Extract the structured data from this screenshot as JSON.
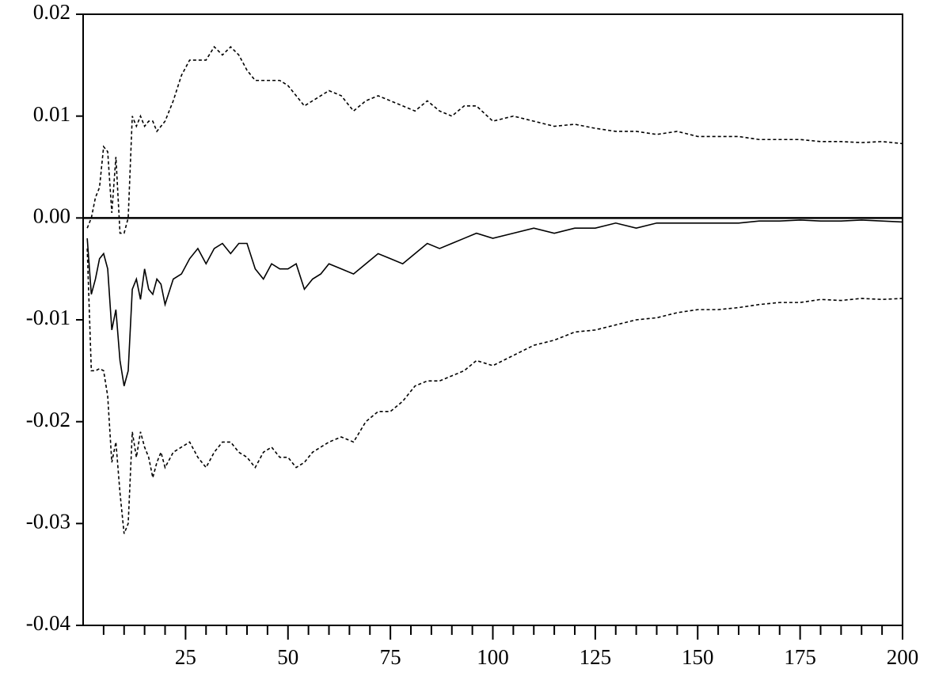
{
  "chart_data": {
    "type": "line",
    "x": [
      1,
      2,
      3,
      4,
      5,
      6,
      7,
      8,
      9,
      10,
      11,
      12,
      13,
      14,
      15,
      16,
      17,
      18,
      19,
      20,
      22,
      24,
      26,
      28,
      30,
      32,
      34,
      36,
      38,
      40,
      42,
      44,
      46,
      48,
      50,
      52,
      54,
      56,
      58,
      60,
      63,
      66,
      69,
      72,
      75,
      78,
      81,
      84,
      87,
      90,
      93,
      96,
      100,
      105,
      110,
      115,
      120,
      125,
      130,
      135,
      140,
      145,
      150,
      155,
      160,
      165,
      170,
      175,
      180,
      185,
      190,
      195,
      200
    ],
    "series": [
      {
        "color": "#000000",
        "dash": false,
        "values": [
          -0.002,
          -0.0075,
          -0.006,
          -0.004,
          -0.0035,
          -0.005,
          -0.011,
          -0.009,
          -0.014,
          -0.0165,
          -0.015,
          -0.007,
          -0.006,
          -0.008,
          -0.005,
          -0.007,
          -0.0075,
          -0.006,
          -0.0065,
          -0.0085,
          -0.006,
          -0.0055,
          -0.004,
          -0.003,
          -0.0045,
          -0.003,
          -0.0025,
          -0.0035,
          -0.0025,
          -0.0025,
          -0.005,
          -0.006,
          -0.0045,
          -0.005,
          -0.005,
          -0.0045,
          -0.007,
          -0.006,
          -0.0055,
          -0.0045,
          -0.005,
          -0.0055,
          -0.0045,
          -0.0035,
          -0.004,
          -0.0045,
          -0.0035,
          -0.0025,
          -0.003,
          -0.0025,
          -0.002,
          -0.0015,
          -0.002,
          -0.0015,
          -0.001,
          -0.0015,
          -0.001,
          -0.001,
          -0.0005,
          -0.001,
          -0.0005,
          -0.0005,
          -0.0005,
          -0.0005,
          -0.0005,
          -0.0003,
          -0.0003,
          -0.0002,
          -0.0003,
          -0.0003,
          -0.0002,
          -0.0003,
          -0.0004
        ]
      },
      {
        "color": "#000000",
        "dash": true,
        "values": [
          -0.001,
          0.0,
          0.002,
          0.003,
          0.007,
          0.0065,
          0.0005,
          0.006,
          -0.0015,
          -0.0015,
          0.0,
          0.01,
          0.009,
          0.01,
          0.009,
          0.0095,
          0.0095,
          0.0085,
          0.009,
          0.0095,
          0.0115,
          0.014,
          0.0155,
          0.0155,
          0.0155,
          0.0168,
          0.016,
          0.0168,
          0.016,
          0.0145,
          0.0135,
          0.0135,
          0.0135,
          0.0135,
          0.013,
          0.012,
          0.011,
          0.0115,
          0.012,
          0.0125,
          0.012,
          0.0105,
          0.0115,
          0.012,
          0.0115,
          0.011,
          0.0105,
          0.0115,
          0.0105,
          0.01,
          0.011,
          0.011,
          0.0095,
          0.01,
          0.0095,
          0.009,
          0.0092,
          0.0088,
          0.0085,
          0.0085,
          0.0082,
          0.0085,
          0.008,
          0.008,
          0.008,
          0.0077,
          0.0077,
          0.0077,
          0.0075,
          0.0075,
          0.0074,
          0.0075,
          0.0073
        ]
      },
      {
        "color": "#000000",
        "dash": true,
        "values": [
          -0.003,
          -0.015,
          -0.015,
          -0.0148,
          -0.015,
          -0.0175,
          -0.024,
          -0.022,
          -0.027,
          -0.031,
          -0.03,
          -0.021,
          -0.0235,
          -0.021,
          -0.0225,
          -0.0235,
          -0.0255,
          -0.024,
          -0.023,
          -0.0245,
          -0.023,
          -0.0225,
          -0.022,
          -0.0235,
          -0.0245,
          -0.023,
          -0.022,
          -0.022,
          -0.023,
          -0.0235,
          -0.0245,
          -0.023,
          -0.0225,
          -0.0235,
          -0.0235,
          -0.0245,
          -0.024,
          -0.023,
          -0.0225,
          -0.022,
          -0.0215,
          -0.022,
          -0.02,
          -0.019,
          -0.019,
          -0.018,
          -0.0165,
          -0.016,
          -0.016,
          -0.0155,
          -0.015,
          -0.014,
          -0.0145,
          -0.0135,
          -0.0125,
          -0.012,
          -0.0112,
          -0.011,
          -0.0105,
          -0.01,
          -0.0098,
          -0.0093,
          -0.009,
          -0.009,
          -0.0088,
          -0.0085,
          -0.0083,
          -0.0083,
          -0.008,
          -0.0081,
          -0.0079,
          -0.008,
          -0.0079
        ]
      }
    ],
    "hline": 0,
    "xlim": [
      0,
      200
    ],
    "xticks": [
      25,
      50,
      75,
      100,
      125,
      150,
      175,
      200
    ],
    "xminorticks": [
      5,
      10,
      15,
      20,
      30,
      35,
      40,
      45,
      55,
      60,
      65,
      70,
      80,
      85,
      90,
      95,
      105,
      110,
      115,
      120,
      130,
      135,
      140,
      145,
      155,
      160,
      165,
      170,
      180,
      185,
      190,
      195
    ],
    "ylim": [
      -0.04,
      0.02
    ],
    "yticks": [
      0.02,
      0.01,
      {
        "value": 0,
        "label": "0.00"
      },
      -0.01,
      -0.02,
      -0.03,
      -0.04
    ]
  }
}
